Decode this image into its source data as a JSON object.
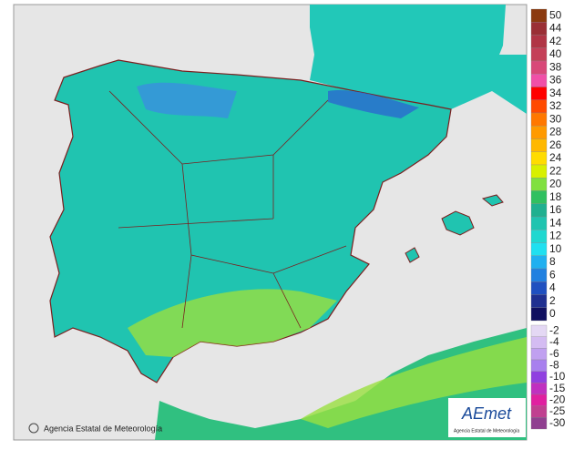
{
  "credit": "Agencia Estatal de Meteorología",
  "logo": {
    "name": "AEmet",
    "subtitle": "Agencia Estatal de Meteorología"
  },
  "legend": {
    "upper": [
      {
        "value": 50,
        "color": "#8b3a0f"
      },
      {
        "value": 44,
        "color": "#9a2f35"
      },
      {
        "value": 42,
        "color": "#b03545"
      },
      {
        "value": 40,
        "color": "#c44058"
      },
      {
        "value": 38,
        "color": "#d84878"
      },
      {
        "value": 36,
        "color": "#f050a8"
      },
      {
        "value": 34,
        "color": "#ff0000"
      },
      {
        "value": 32,
        "color": "#ff4a00"
      },
      {
        "value": 30,
        "color": "#ff7800"
      },
      {
        "value": 28,
        "color": "#ff9a00"
      },
      {
        "value": 26,
        "color": "#ffb800"
      },
      {
        "value": 24,
        "color": "#ffdc00"
      },
      {
        "value": 22,
        "color": "#d8f000"
      },
      {
        "value": 20,
        "color": "#80e040"
      },
      {
        "value": 18,
        "color": "#30c060"
      },
      {
        "value": 16,
        "color": "#20b090"
      },
      {
        "value": 14,
        "color": "#20c4b0"
      },
      {
        "value": 12,
        "color": "#20d8d0"
      },
      {
        "value": 10,
        "color": "#20e0f0"
      },
      {
        "value": 8,
        "color": "#20b0f0"
      },
      {
        "value": 6,
        "color": "#2080e0"
      },
      {
        "value": 4,
        "color": "#2050c0"
      },
      {
        "value": 2,
        "color": "#203090"
      },
      {
        "value": 0,
        "color": "#101060"
      }
    ],
    "lower": [
      {
        "value": -2,
        "color": "#e4d8f4"
      },
      {
        "value": -4,
        "color": "#d4bcf2"
      },
      {
        "value": -6,
        "color": "#c0a0f0"
      },
      {
        "value": -8,
        "color": "#a880ee"
      },
      {
        "value": -10,
        "color": "#9040e0"
      },
      {
        "value": -15,
        "color": "#c030c0"
      },
      {
        "value": -20,
        "color": "#e020a0"
      },
      {
        "value": -25,
        "color": "#c04090"
      },
      {
        "value": -30,
        "color": "#904090"
      }
    ]
  }
}
